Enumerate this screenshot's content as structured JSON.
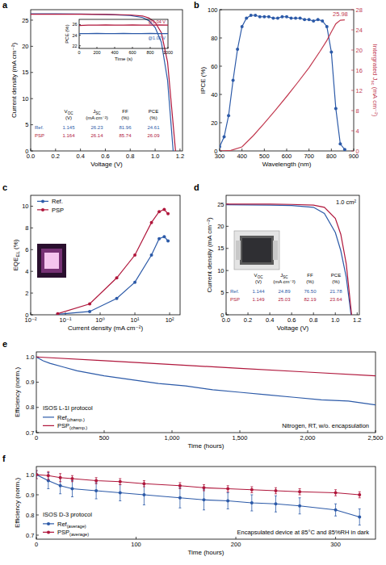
{
  "chart_data": [
    {
      "panel": "a",
      "type": "line",
      "xlabel": "Voltage (V)",
      "ylabel": "Current density (mA cm⁻²)",
      "xlim": [
        0,
        1.22
      ],
      "xticks": [
        {
          "value": 0,
          "label": "0.0"
        },
        0.2,
        0.4,
        0.6,
        0.8,
        {
          "value": 1,
          "label": "1.0"
        },
        1.2
      ],
      "ylim": [
        0,
        27
      ],
      "yticks": [
        0,
        5,
        10,
        15,
        20,
        25
      ],
      "series": [
        {
          "color": "#2c5aa8",
          "x": [
            0,
            0.2,
            0.4,
            0.6,
            0.8,
            0.9,
            0.95,
            1.0,
            1.05,
            1.1,
            1.145
          ],
          "values": [
            26.23,
            26.2,
            26.18,
            26.1,
            25.9,
            25.5,
            24.9,
            23.6,
            20.8,
            13.5,
            0
          ]
        },
        {
          "color": "#b0173c",
          "x": [
            0,
            0.2,
            0.4,
            0.6,
            0.8,
            0.9,
            0.95,
            1.0,
            1.05,
            1.1,
            1.164
          ],
          "values": [
            26.14,
            26.13,
            26.12,
            26.1,
            26.0,
            25.8,
            25.4,
            24.6,
            22.6,
            17.0,
            0
          ]
        }
      ],
      "table": {
        "columns": [
          {
            "label": [
              "V",
              {
                "sub": "OC"
              }
            ],
            "unit": "(V)"
          },
          {
            "label": [
              "J",
              {
                "sub": "SC"
              }
            ],
            "unit": "(mA cm⁻²)"
          },
          {
            "label": [
              "FF"
            ],
            "unit": "(%)"
          },
          {
            "label": [
              "PCE"
            ],
            "unit": "(%)"
          }
        ],
        "rows": [
          {
            "name": "Ref.",
            "color": "#2c5aa8",
            "cells": [
              "1.145",
              "26.23",
              "81.96",
              "24.61"
            ]
          },
          {
            "name": "PSP",
            "color": "#b0173c",
            "cells": [
              "1.164",
              "26.14",
              "85.74",
              "26.09"
            ]
          }
        ]
      },
      "inset": {
        "type": "line",
        "xlabel": "Time (s)",
        "ylabel": "PCE (%)",
        "xlim": [
          0,
          1000
        ],
        "xticks": [
          0,
          200,
          400,
          600,
          800,
          1000
        ],
        "ylim": [
          21.5,
          27
        ],
        "yticks": [
          22,
          24,
          26
        ],
        "series": [
          {
            "color": "#2c5aa8",
            "x": [
              0,
              100,
              200,
              300,
              400,
              500,
              600,
              700,
              800,
              900,
              1000
            ],
            "values": [
              24.3,
              24.3,
              24.35,
              24.3,
              24.3,
              24.35,
              24.3,
              24.3,
              24.35,
              24.3,
              24.3
            ]
          },
          {
            "color": "#b0173c",
            "x": [
              0,
              100,
              200,
              300,
              400,
              500,
              600,
              700,
              800,
              900,
              1000
            ],
            "values": [
              25.85,
              25.9,
              25.9,
              25.95,
              25.9,
              25.9,
              25.95,
              25.9,
              25.9,
              25.95,
              25.9
            ]
          }
        ],
        "annotations": [
          "@1.04 V",
          "@1.02 V"
        ]
      }
    },
    {
      "panel": "b",
      "type": "line",
      "xlabel": "Wavelength (nm)",
      "ylabel": "IPCE (%)",
      "y2label": [
        "Intergrated J",
        {
          "sub": "sc"
        },
        " (mA cm⁻²)"
      ],
      "xlim": [
        300,
        900
      ],
      "xticks": [
        300,
        400,
        500,
        600,
        700,
        800,
        900
      ],
      "ylim": [
        0,
        100
      ],
      "yticks": [
        0,
        20,
        40,
        60,
        80,
        100
      ],
      "y2lim": [
        0,
        28
      ],
      "y2ticks": [
        0,
        4,
        8,
        12,
        16,
        20,
        24,
        28
      ],
      "series": [
        {
          "color": "#2c5aa8",
          "marker": "circle",
          "x": [
            300,
            320,
            340,
            360,
            380,
            400,
            420,
            440,
            460,
            480,
            500,
            520,
            540,
            560,
            580,
            600,
            620,
            640,
            660,
            680,
            700,
            720,
            740,
            760,
            780,
            800,
            820,
            840,
            860
          ],
          "values": [
            3,
            10,
            25,
            50,
            72,
            88,
            94,
            96,
            96,
            95,
            95,
            95,
            94,
            94,
            95,
            95,
            94,
            94,
            94,
            93,
            93,
            92,
            93,
            92,
            88,
            70,
            30,
            5,
            1
          ]
        },
        {
          "color": "#c23a50",
          "axis": "y2",
          "x": [
            300,
            350,
            400,
            450,
            500,
            550,
            600,
            650,
            700,
            750,
            780,
            800,
            820,
            840,
            860
          ],
          "values": [
            0,
            0.1,
            0.8,
            3.0,
            5.5,
            8.1,
            10.8,
            13.6,
            16.5,
            19.8,
            21.9,
            23.6,
            25.2,
            25.9,
            25.98
          ]
        }
      ],
      "annotations": [
        "25.98"
      ]
    },
    {
      "panel": "c",
      "type": "line",
      "log": "x",
      "xlabel": "Current density (mA cm⁻²)",
      "ylabel": [
        "EQE",
        {
          "sub": "EL"
        },
        " (%)"
      ],
      "xlim": [
        0.01,
        200
      ],
      "xticks": [
        {
          "value": 0.01,
          "label": "10⁻²"
        },
        {
          "value": 0.1,
          "label": "10⁻¹"
        },
        {
          "value": 1,
          "label": "10⁰"
        },
        {
          "value": 10,
          "label": "10¹"
        },
        {
          "value": 100,
          "label": "10²"
        }
      ],
      "ylim": [
        0,
        11
      ],
      "yticks": [
        0,
        2,
        4,
        6,
        8,
        10
      ],
      "legend": "upper left",
      "series": [
        {
          "name": "Ref.",
          "color": "#2c5aa8",
          "marker": "circle",
          "x": [
            0.06,
            0.5,
            3,
            10,
            30,
            50,
            70,
            90
          ],
          "values": [
            0.05,
            0.3,
            1.5,
            3.0,
            5.5,
            7.0,
            7.2,
            6.8
          ]
        },
        {
          "name": "PSP",
          "color": "#b0173c",
          "marker": "circle",
          "x": [
            0.06,
            0.5,
            3,
            10,
            30,
            50,
            70,
            90
          ],
          "values": [
            0.1,
            1.0,
            3.4,
            5.5,
            8.5,
            9.5,
            9.7,
            9.3
          ]
        }
      ]
    },
    {
      "panel": "d",
      "type": "line",
      "xlabel": "Voltage (V)",
      "ylabel": "Current density (mA cm⁻²)",
      "xlim": [
        0,
        1.22
      ],
      "xticks": [
        {
          "value": 0,
          "label": "0.0"
        },
        0.2,
        0.4,
        0.6,
        0.8,
        {
          "value": 1,
          "label": "1.0"
        },
        1.2
      ],
      "ylim": [
        0,
        27
      ],
      "yticks": [
        0,
        5,
        10,
        15,
        20,
        25
      ],
      "series": [
        {
          "color": "#2c5aa8",
          "x": [
            0,
            0.2,
            0.4,
            0.6,
            0.8,
            0.9,
            1.0,
            1.05,
            1.1,
            1.144
          ],
          "values": [
            24.89,
            24.85,
            24.8,
            24.7,
            24.3,
            22.9,
            18.6,
            14.5,
            8.5,
            0
          ]
        },
        {
          "color": "#b0173c",
          "x": [
            0,
            0.2,
            0.4,
            0.6,
            0.8,
            0.9,
            1.0,
            1.05,
            1.1,
            1.149
          ],
          "values": [
            25.03,
            25.02,
            25.0,
            24.95,
            24.8,
            24.3,
            21.8,
            18.2,
            11.5,
            0
          ]
        }
      ],
      "annotations": [
        "1.0 cm²"
      ],
      "table": {
        "columns": [
          {
            "label": [
              "V",
              {
                "sub": "OC"
              }
            ],
            "unit": "(V)"
          },
          {
            "label": [
              "J",
              {
                "sub": "SC"
              }
            ],
            "unit": "(mA cm⁻²)"
          },
          {
            "label": [
              "FF"
            ],
            "unit": "(%)"
          },
          {
            "label": [
              "PCE"
            ],
            "unit": "(%)"
          }
        ],
        "rows": [
          {
            "name": "Ref.",
            "color": "#2c5aa8",
            "cells": [
              "1.144",
              "24.89",
              "76.50",
              "21.78"
            ]
          },
          {
            "name": "PSP",
            "color": "#b0173c",
            "cells": [
              "1.149",
              "25.03",
              "82.19",
              "23.64"
            ]
          }
        ]
      }
    },
    {
      "panel": "e",
      "type": "line",
      "xlabel": "Time (hours)",
      "ylabel": "Efficiency (norm.)",
      "xlim": [
        0,
        2500
      ],
      "xticks": [
        0,
        500,
        {
          "value": 1000,
          "label": "1,000"
        },
        {
          "value": 1500,
          "label": "1,500"
        },
        {
          "value": 2000,
          "label": "2,000"
        },
        {
          "value": 2500,
          "label": "2,500"
        }
      ],
      "ylim": [
        0.7,
        1.02
      ],
      "yticks": [
        0.7,
        0.8,
        0.9,
        {
          "value": 1,
          "label": "1.0"
        }
      ],
      "legend": "lower left",
      "series": [
        {
          "name": [
            "Ref",
            {
              "sub": "(champ.)"
            }
          ],
          "color": "#2c5aa8",
          "x": [
            0,
            50,
            100,
            200,
            300,
            500,
            700,
            900,
            1100,
            1300,
            1500,
            1700,
            1900,
            2100,
            2300,
            2500
          ],
          "values": [
            1.0,
            0.985,
            0.975,
            0.96,
            0.945,
            0.925,
            0.91,
            0.895,
            0.885,
            0.87,
            0.86,
            0.85,
            0.84,
            0.83,
            0.825,
            0.81
          ]
        },
        {
          "name": [
            "PSP",
            {
              "sub": "(champ.)"
            }
          ],
          "color": "#b0173c",
          "x": [
            0,
            500,
            1000,
            1500,
            2000,
            2500
          ],
          "values": [
            1.0,
            0.985,
            0.97,
            0.955,
            0.94,
            0.925
          ]
        }
      ],
      "annotations": [
        "ISOS L-1I protocol",
        "Nitrogen, RT, w/o. encapsulation"
      ]
    },
    {
      "panel": "f",
      "type": "line",
      "xlabel": "Time (hours)",
      "ylabel": "Efficiency (norm.)",
      "xlim": [
        0,
        340
      ],
      "xticks": [
        0,
        100,
        200,
        300
      ],
      "ylim": [
        0.68,
        1.04
      ],
      "yticks": [
        0.7,
        0.8,
        0.9,
        {
          "value": 1,
          "label": "1.0"
        }
      ],
      "legend": "lower left",
      "x": [
        0,
        12,
        24,
        36,
        60,
        84,
        108,
        144,
        168,
        192,
        216,
        240,
        264,
        300,
        324
      ],
      "series": [
        {
          "name": [
            "Ref",
            {
              "sub": "(average)"
            }
          ],
          "color": "#2c5aa8",
          "marker": "circle",
          "values": [
            1.0,
            0.97,
            0.945,
            0.93,
            0.92,
            0.91,
            0.9,
            0.885,
            0.875,
            0.87,
            0.86,
            0.855,
            0.845,
            0.825,
            0.79
          ],
          "errors": [
            0.02,
            0.04,
            0.04,
            0.04,
            0.04,
            0.04,
            0.05,
            0.05,
            0.05,
            0.04,
            0.04,
            0.04,
            0.04,
            0.03,
            0.04
          ]
        },
        {
          "name": [
            "PSP",
            {
              "sub": "(average)"
            }
          ],
          "color": "#b0173c",
          "marker": "circle",
          "values": [
            1.0,
            0.995,
            0.985,
            0.98,
            0.97,
            0.965,
            0.955,
            0.945,
            0.935,
            0.93,
            0.925,
            0.92,
            0.915,
            0.91,
            0.9
          ],
          "errors": [
            0.02,
            0.02,
            0.02,
            0.015,
            0.015,
            0.015,
            0.015,
            0.015,
            0.015,
            0.015,
            0.015,
            0.015,
            0.015,
            0.015,
            0.015
          ]
        }
      ],
      "annotations": [
        "ISOS D-3 protocol",
        "Encapsulated device at 85°C and 85%RH in dark"
      ]
    }
  ]
}
